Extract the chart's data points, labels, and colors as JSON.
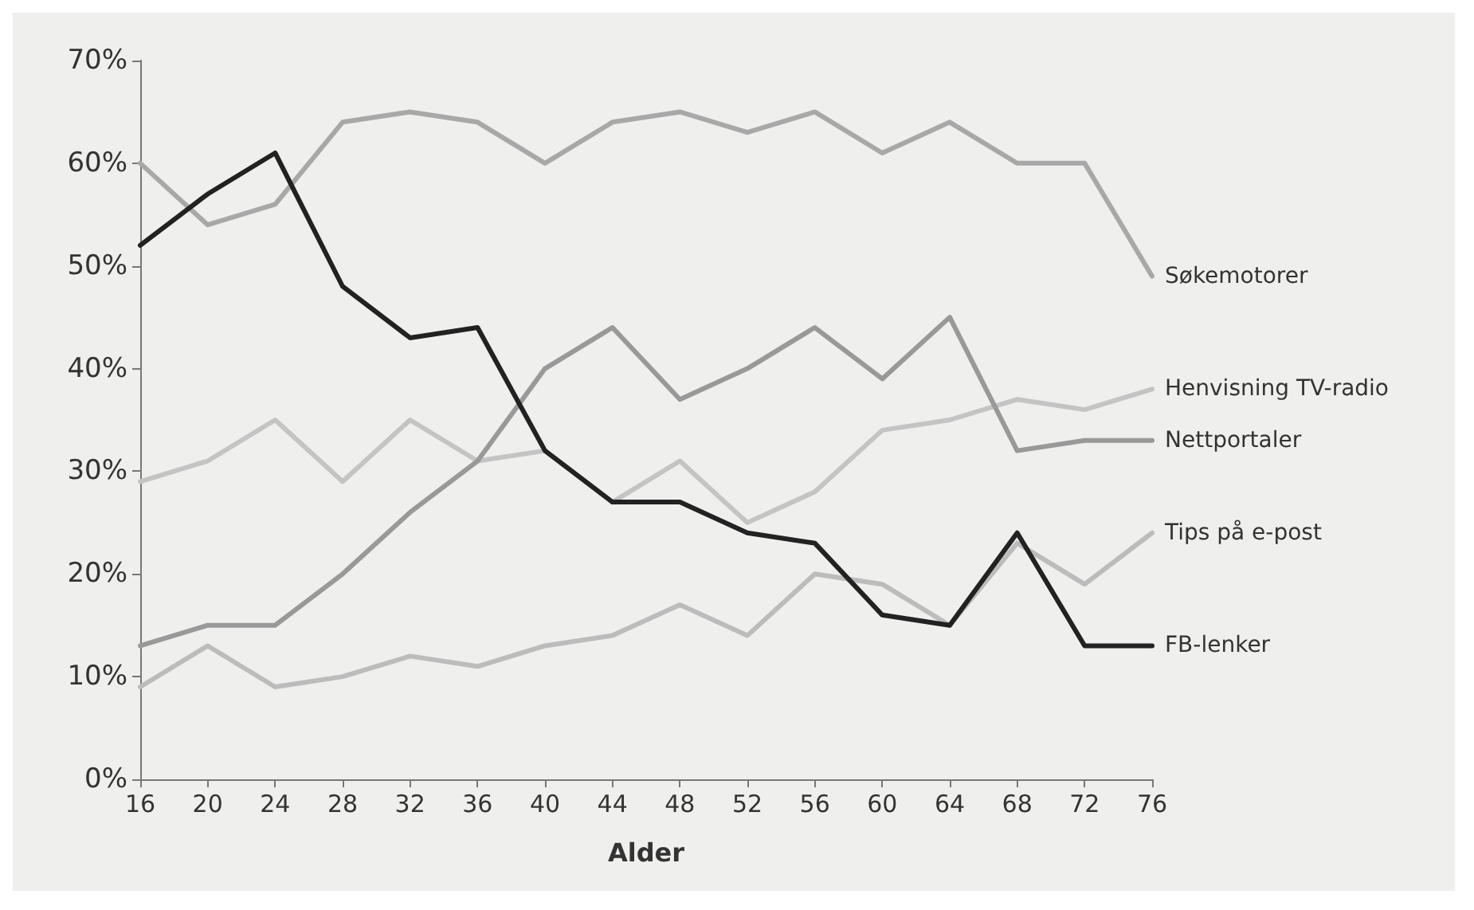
{
  "chart_data": {
    "type": "line",
    "xlabel": "Alder",
    "categories": [
      "16",
      "20",
      "24",
      "28",
      "32",
      "36",
      "40",
      "44",
      "48",
      "52",
      "56",
      "60",
      "64",
      "68",
      "72",
      "76"
    ],
    "series": [
      {
        "name": "Søkemotorer",
        "color": "#a8a8a8",
        "values": [
          60,
          54,
          56,
          64,
          65,
          64,
          60,
          64,
          65,
          63,
          65,
          61,
          64,
          60,
          60,
          49
        ]
      },
      {
        "name": "Henvisning TV-radio",
        "color": "#c4c4c4",
        "values": [
          29,
          31,
          35,
          29,
          35,
          31,
          32,
          27,
          31,
          25,
          28,
          34,
          35,
          37,
          36,
          38
        ]
      },
      {
        "name": "Nettportaler",
        "color": "#999999",
        "values": [
          13,
          15,
          15,
          20,
          26,
          31,
          40,
          44,
          37,
          40,
          44,
          39,
          45,
          32,
          33,
          33
        ]
      },
      {
        "name": "Tips på e-post",
        "color": "#bcbcbc",
        "values": [
          9,
          13,
          9,
          10,
          12,
          11,
          13,
          14,
          17,
          14,
          20,
          19,
          15,
          23,
          19,
          24
        ]
      },
      {
        "name": "FB-lenker",
        "color": "#222222",
        "values": [
          52,
          57,
          61,
          48,
          43,
          44,
          32,
          27,
          27,
          24,
          23,
          16,
          15,
          24,
          13,
          13
        ]
      }
    ],
    "ylim": [
      0,
      70
    ],
    "yticks": [
      {
        "value": 0,
        "label": "0%"
      },
      {
        "value": 10,
        "label": "10%"
      },
      {
        "value": 20,
        "label": "20%"
      },
      {
        "value": 30,
        "label": "30%"
      },
      {
        "value": 40,
        "label": "40%"
      },
      {
        "value": 50,
        "label": "50%"
      },
      {
        "value": 60,
        "label": "60%"
      },
      {
        "value": 70,
        "label": "70%"
      }
    ],
    "grid": false,
    "legend": false,
    "marker": "none",
    "line_style": "solid"
  }
}
